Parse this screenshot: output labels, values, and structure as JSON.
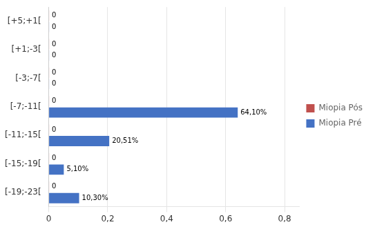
{
  "chart_data": {
    "type": "bar",
    "orientation": "horizontal",
    "categories": [
      "[+5;+1[",
      "[+1;-3[",
      "[-3;-7[",
      "[-7;-11[",
      "[-11;-15[",
      "[-15;-19[",
      "[-19;-23["
    ],
    "series": [
      {
        "name": "Miopia Pós",
        "color": "#C0504D",
        "values": [
          0.001,
          0.001,
          0.001,
          0.001,
          0.001,
          0.001,
          0.001
        ],
        "value_labels": [
          "0",
          "0",
          "0",
          "0",
          "0",
          "0",
          "0"
        ]
      },
      {
        "name": "Miopia Pré",
        "color": "#4472C4",
        "values": [
          0.001,
          0.001,
          0.001,
          0.641,
          0.2051,
          0.051,
          0.103
        ],
        "value_labels": [
          "0",
          "0",
          "0",
          "64,10%",
          "20,51%",
          "5,10%",
          "10,30%"
        ]
      }
    ],
    "xlim": [
      0,
      0.85
    ],
    "xticks": [
      0,
      {
        "value": 0.2,
        "label": "0,2"
      },
      {
        "value": 0.4,
        "label": "0,4"
      },
      {
        "value": 0.6,
        "label": "0,6"
      },
      {
        "value": 0.8,
        "label": "0,8"
      }
    ],
    "grid": true,
    "legend": "right",
    "data_labels": true
  }
}
